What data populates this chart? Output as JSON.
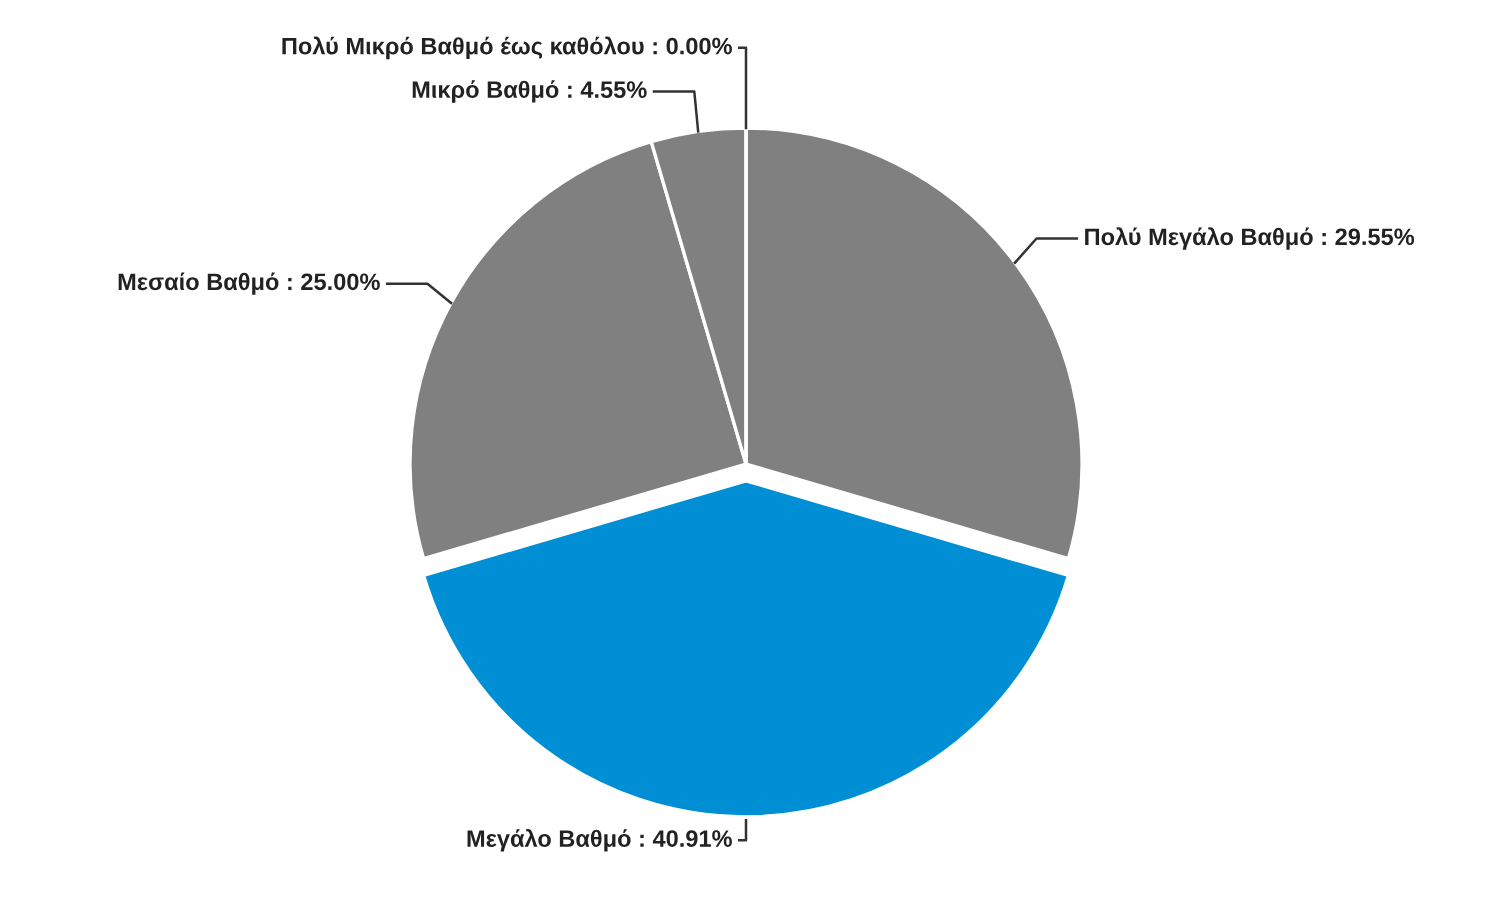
{
  "chart_data": {
    "type": "pie",
    "categories": [
      "Πολύ Μεγάλο Βαθμό",
      "Μεγάλο Βαθμό",
      "Μεσαίο Βαθμό",
      "Μικρό Βαθμό",
      "Πολύ Μικρό Βαθμό έως καθόλου"
    ],
    "values": [
      29.55,
      40.91,
      25.0,
      4.55,
      0.0
    ],
    "value_labels": [
      ": 29.55%",
      ": 40.91%",
      ": 25.00%",
      ": 4.55%",
      ": 0.00%"
    ],
    "colors": [
      "#808080",
      "#008fd5",
      "#808080",
      "#808080",
      "#808080"
    ],
    "legend": false
  }
}
